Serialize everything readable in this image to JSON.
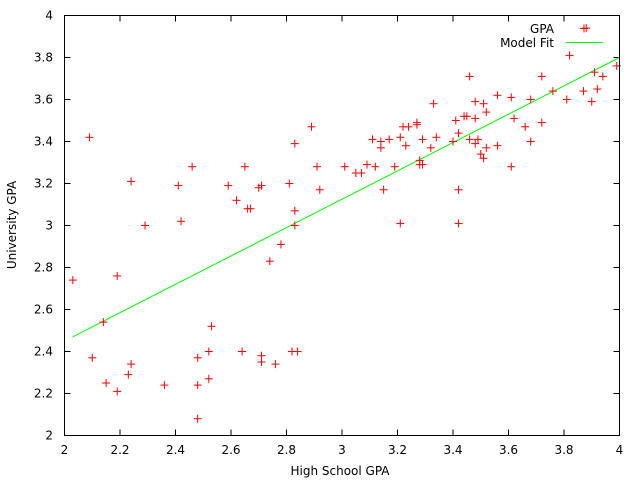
{
  "chart_data": {
    "type": "scatter",
    "title": "",
    "xlabel": "High School GPA",
    "ylabel": "University GPA",
    "xlim": [
      2,
      4
    ],
    "ylim": [
      2,
      4
    ],
    "x_ticks": [
      "2",
      "2.2",
      "2.4",
      "2.6",
      "2.8",
      "3",
      "3.2",
      "3.4",
      "3.6",
      "3.8",
      "4"
    ],
    "y_ticks": [
      "2",
      "2.2",
      "2.4",
      "2.6",
      "2.8",
      "3",
      "3.2",
      "3.4",
      "3.6",
      "3.8",
      "4"
    ],
    "grid": false,
    "legend_position": "top-right",
    "series": [
      {
        "name": "GPA",
        "kind": "points",
        "marker": "plus",
        "color": "#ff0000",
        "points": [
          [
            2.03,
            2.74
          ],
          [
            2.09,
            3.42
          ],
          [
            2.1,
            2.37
          ],
          [
            2.14,
            2.54
          ],
          [
            2.15,
            2.25
          ],
          [
            2.19,
            2.76
          ],
          [
            2.19,
            2.21
          ],
          [
            2.23,
            2.29
          ],
          [
            2.24,
            2.34
          ],
          [
            2.24,
            3.21
          ],
          [
            2.29,
            3.0
          ],
          [
            2.36,
            2.24
          ],
          [
            2.41,
            3.19
          ],
          [
            2.42,
            3.02
          ],
          [
            2.46,
            3.28
          ],
          [
            2.48,
            2.37
          ],
          [
            2.48,
            2.24
          ],
          [
            2.48,
            2.08
          ],
          [
            2.52,
            2.4
          ],
          [
            2.52,
            2.27
          ],
          [
            2.53,
            2.52
          ],
          [
            2.59,
            3.19
          ],
          [
            2.62,
            3.12
          ],
          [
            2.64,
            2.4
          ],
          [
            2.65,
            3.28
          ],
          [
            2.66,
            3.08
          ],
          [
            2.67,
            3.08
          ],
          [
            2.7,
            3.18
          ],
          [
            2.71,
            3.19
          ],
          [
            2.71,
            2.38
          ],
          [
            2.71,
            2.35
          ],
          [
            2.74,
            2.83
          ],
          [
            2.76,
            2.34
          ],
          [
            2.78,
            2.91
          ],
          [
            2.81,
            3.2
          ],
          [
            2.82,
            2.4
          ],
          [
            2.83,
            3.39
          ],
          [
            2.83,
            3.07
          ],
          [
            2.83,
            3.0
          ],
          [
            2.84,
            2.4
          ],
          [
            2.89,
            3.47
          ],
          [
            2.91,
            3.28
          ],
          [
            2.92,
            3.17
          ],
          [
            3.01,
            3.28
          ],
          [
            3.05,
            3.25
          ],
          [
            3.07,
            3.25
          ],
          [
            3.09,
            3.29
          ],
          [
            3.11,
            3.41
          ],
          [
            3.12,
            3.28
          ],
          [
            3.14,
            3.37
          ],
          [
            3.14,
            3.4
          ],
          [
            3.15,
            3.17
          ],
          [
            3.17,
            3.41
          ],
          [
            3.19,
            3.28
          ],
          [
            3.21,
            3.42
          ],
          [
            3.21,
            3.01
          ],
          [
            3.22,
            3.47
          ],
          [
            3.23,
            3.38
          ],
          [
            3.24,
            3.47
          ],
          [
            3.27,
            3.48
          ],
          [
            3.27,
            3.49
          ],
          [
            3.28,
            3.31
          ],
          [
            3.28,
            3.29
          ],
          [
            3.29,
            3.41
          ],
          [
            3.29,
            3.29
          ],
          [
            3.32,
            3.37
          ],
          [
            3.33,
            3.58
          ],
          [
            3.34,
            3.42
          ],
          [
            3.4,
            3.4
          ],
          [
            3.41,
            3.5
          ],
          [
            3.42,
            3.44
          ],
          [
            3.42,
            3.17
          ],
          [
            3.42,
            3.01
          ],
          [
            3.44,
            3.52
          ],
          [
            3.45,
            3.52
          ],
          [
            3.46,
            3.71
          ],
          [
            3.46,
            3.41
          ],
          [
            3.48,
            3.59
          ],
          [
            3.48,
            3.51
          ],
          [
            3.48,
            3.39
          ],
          [
            3.49,
            3.41
          ],
          [
            3.5,
            3.34
          ],
          [
            3.51,
            3.58
          ],
          [
            3.51,
            3.32
          ],
          [
            3.52,
            3.54
          ],
          [
            3.52,
            3.37
          ],
          [
            3.56,
            3.62
          ],
          [
            3.56,
            3.38
          ],
          [
            3.61,
            3.61
          ],
          [
            3.61,
            3.28
          ],
          [
            3.62,
            3.51
          ],
          [
            3.66,
            3.47
          ],
          [
            3.68,
            3.6
          ],
          [
            3.68,
            3.4
          ],
          [
            3.72,
            3.71
          ],
          [
            3.72,
            3.49
          ],
          [
            3.76,
            3.64
          ],
          [
            3.81,
            3.6
          ],
          [
            3.82,
            3.81
          ],
          [
            3.87,
            3.64
          ],
          [
            3.88,
            3.94
          ],
          [
            3.9,
            3.59
          ],
          [
            3.91,
            3.73
          ],
          [
            3.92,
            3.65
          ],
          [
            3.94,
            3.71
          ],
          [
            3.99,
            3.76
          ]
        ]
      },
      {
        "name": "Model Fit",
        "kind": "line",
        "color": "#00ff00",
        "points": [
          [
            2.03,
            2.47
          ],
          [
            4.0,
            3.8
          ]
        ]
      }
    ]
  }
}
